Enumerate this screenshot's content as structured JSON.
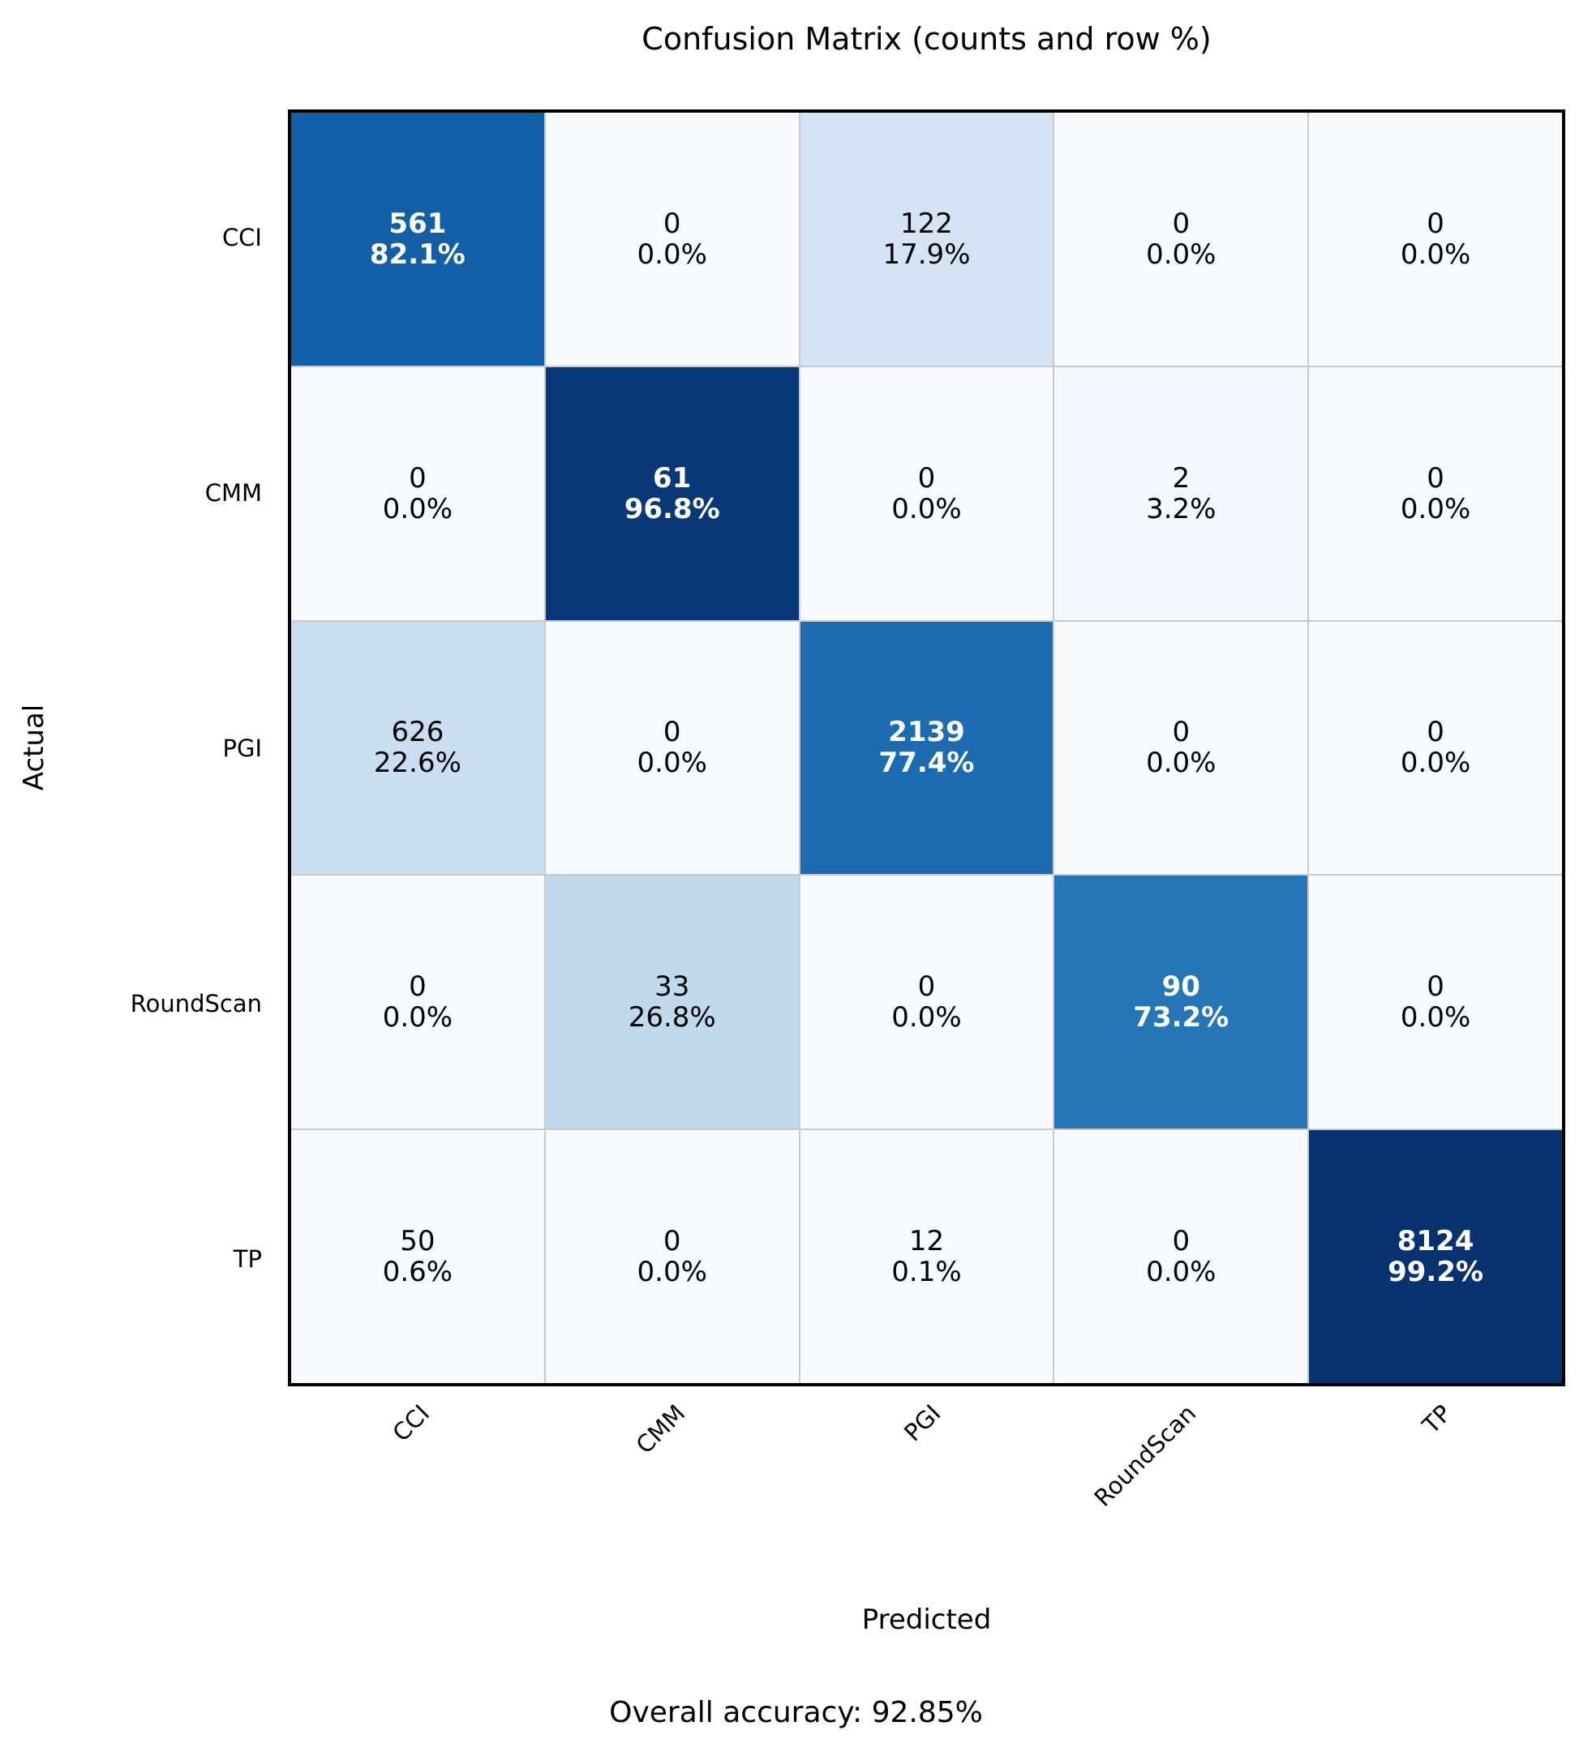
{
  "title": "Confusion Matrix (counts and row %)",
  "footer": "Overall accuracy: 92.85%",
  "chart_data": {
    "type": "heatmap",
    "title": "Confusion Matrix (counts and row %)",
    "xlabel": "Predicted",
    "ylabel": "Actual",
    "x_categories": [
      "CCI",
      "CMM",
      "PGI",
      "RoundScan",
      "TP"
    ],
    "y_categories": [
      "CCI",
      "CMM",
      "PGI",
      "RoundScan",
      "TP"
    ],
    "counts": [
      [
        561,
        0,
        122,
        0,
        0
      ],
      [
        0,
        61,
        0,
        2,
        0
      ],
      [
        626,
        0,
        2139,
        0,
        0
      ],
      [
        0,
        33,
        0,
        90,
        0
      ],
      [
        50,
        0,
        12,
        0,
        8124
      ]
    ],
    "row_percents": [
      [
        82.1,
        0.0,
        17.9,
        0.0,
        0.0
      ],
      [
        0.0,
        96.8,
        0.0,
        3.2,
        0.0
      ],
      [
        22.6,
        0.0,
        77.4,
        0.0,
        0.0
      ],
      [
        0.0,
        26.8,
        0.0,
        73.2,
        0.0
      ],
      [
        0.6,
        0.0,
        0.1,
        0.0,
        99.2
      ]
    ],
    "percent_labels": [
      [
        "82.1%",
        "0.0%",
        "17.9%",
        "0.0%",
        "0.0%"
      ],
      [
        "0.0%",
        "96.8%",
        "0.0%",
        "3.2%",
        "0.0%"
      ],
      [
        "22.6%",
        "0.0%",
        "77.4%",
        "0.0%",
        "0.0%"
      ],
      [
        "0.0%",
        "26.8%",
        "0.0%",
        "73.2%",
        "0.0%"
      ],
      [
        "0.6%",
        "0.0%",
        "0.1%",
        "0.0%",
        "99.2%"
      ]
    ],
    "overall_accuracy": "92.85%",
    "colormap": "Blues",
    "colormap_stops": [
      [
        0.0,
        "#f7fbff"
      ],
      [
        0.125,
        "#deebf7"
      ],
      [
        0.25,
        "#c6dbef"
      ],
      [
        0.375,
        "#9ecae1"
      ],
      [
        0.5,
        "#6baed6"
      ],
      [
        0.625,
        "#4292c6"
      ],
      [
        0.75,
        "#2171b5"
      ],
      [
        0.875,
        "#08519c"
      ],
      [
        1.0,
        "#08306b"
      ]
    ],
    "grid_line_color": "#c9c9c9",
    "border_color": "#000000",
    "light_text_color": "#ffffff",
    "dark_text_color": "#000000",
    "legend_position": "none",
    "grid": false
  }
}
